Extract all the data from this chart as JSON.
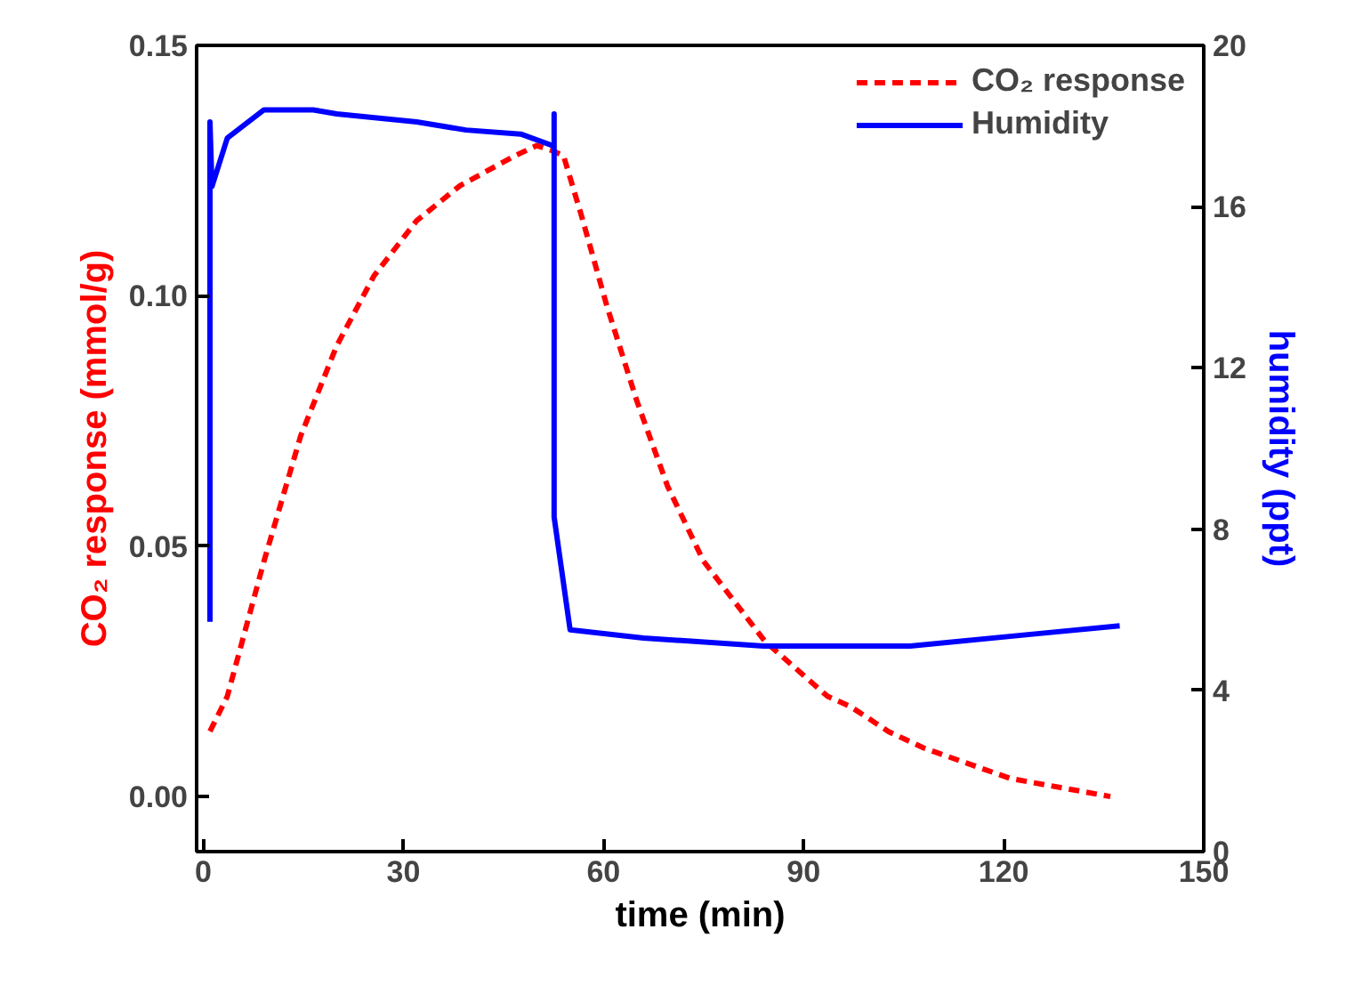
{
  "chart_data": {
    "type": "line",
    "xlabel": "time (min)",
    "ylabel": "CO₂ response (mmol/g)",
    "y2label": "humidity (ppt)",
    "xlim": [
      -1,
      150
    ],
    "xticks": [
      0,
      30,
      60,
      90,
      120,
      150
    ],
    "ylim": [
      -0.011,
      0.15
    ],
    "yticks": [
      {
        "value": 0,
        "label": "0.00"
      },
      {
        "value": 0.05,
        "label": "0.05"
      },
      {
        "value": 0.1,
        "label": "0.10"
      },
      {
        "value": 0.15,
        "label": "0.15"
      }
    ],
    "y2lim": [
      0,
      20
    ],
    "y2ticks": [
      0,
      4,
      8,
      12,
      16,
      20
    ],
    "legend": "top right",
    "grid": false,
    "series": [
      {
        "name": "CO₂ response",
        "color": "#ff0000",
        "line_style": "dashed",
        "x": [
          1.0,
          3.6,
          9.1,
          14.6,
          20,
          25.6,
          32,
          38.5,
          46.8,
          50,
          52.3,
          54,
          56.7,
          60.5,
          65,
          69.6,
          75,
          84.2,
          93.6,
          97,
          102.7,
          108,
          121,
          136
        ],
        "values": [
          0.013,
          0.02,
          0.047,
          0.072,
          0.09,
          0.104,
          0.115,
          0.122,
          0.128,
          0.13,
          0.129,
          0.128,
          0.116,
          0.098,
          0.079,
          0.062,
          0.047,
          0.031,
          0.02,
          0.018,
          0.013,
          0.0097,
          0.0036,
          0.0
        ]
      },
      {
        "name": "Humidity",
        "color": "#0000ff",
        "line_style": "solid",
        "axis": "y2",
        "x": [
          1.0,
          1.0,
          1.3,
          3.6,
          9.1,
          16.5,
          20,
          32,
          39.4,
          47.6,
          52.6,
          52.6,
          52.6,
          55,
          66,
          84,
          97,
          106,
          124.7,
          137.4
        ],
        "values": [
          5.7,
          18.1,
          16.5,
          17.7,
          18.4,
          18.4,
          18.3,
          18.1,
          17.9,
          17.8,
          17.5,
          18.3,
          8.3,
          5.5,
          5.3,
          5.1,
          5.1,
          5.1,
          5.4,
          5.6
        ]
      }
    ]
  }
}
